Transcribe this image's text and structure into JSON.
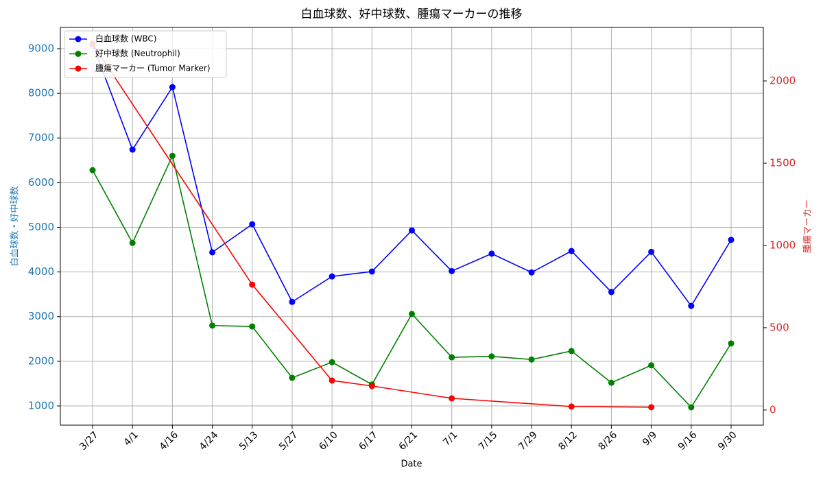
{
  "chart_data": {
    "type": "line",
    "title": "白血球数、好中球数、腫瘍マーカーの推移",
    "x_label": "Date",
    "y_label": "白血球数・好中球数",
    "y2_label": "腫瘍マーカー",
    "y_label_color": "#1f77b4",
    "y2_label_color": "#d62728",
    "categories": [
      "3/27",
      "4/1",
      "4/16",
      "4/24",
      "5/13",
      "5/27",
      "6/10",
      "6/17",
      "6/21",
      "7/1",
      "7/15",
      "7/29",
      "8/12",
      "8/26",
      "9/9",
      "9/16",
      "9/30"
    ],
    "series": [
      {
        "name": "白血球数 (WBC)",
        "color": "#0000ff",
        "values": [
          9100,
          6740,
          8140,
          4440,
          5070,
          3330,
          3900,
          4010,
          4930,
          4020,
          4410,
          3990,
          4470,
          3550,
          4450,
          3240,
          4720
        ]
      },
      {
        "name": "好中球数 (Neutrophil)",
        "color": "#008000",
        "values": [
          6280,
          4650,
          6600,
          2800,
          2780,
          1630,
          1980,
          1480,
          3060,
          2090,
          2110,
          2040,
          2230,
          1520,
          1910,
          970,
          2400
        ]
      },
      {
        "name": "腫瘍マーカー (Tumor Marker)",
        "color": "#ff0000",
        "axis": "y2",
        "connect_gaps": true,
        "values": [
          2225,
          null,
          null,
          null,
          762,
          null,
          179,
          146,
          null,
          71,
          null,
          null,
          21,
          null,
          17,
          null,
          null
        ]
      }
    ],
    "ylim": [
      570,
      9476
    ],
    "yticks": [
      1000,
      2000,
      3000,
      4000,
      5000,
      6000,
      7000,
      8000,
      9000
    ],
    "y2lim": [
      -92,
      2325
    ],
    "y2ticks": [
      0,
      500,
      1000,
      1500,
      2000
    ],
    "grid": true,
    "legend": "upper left"
  }
}
